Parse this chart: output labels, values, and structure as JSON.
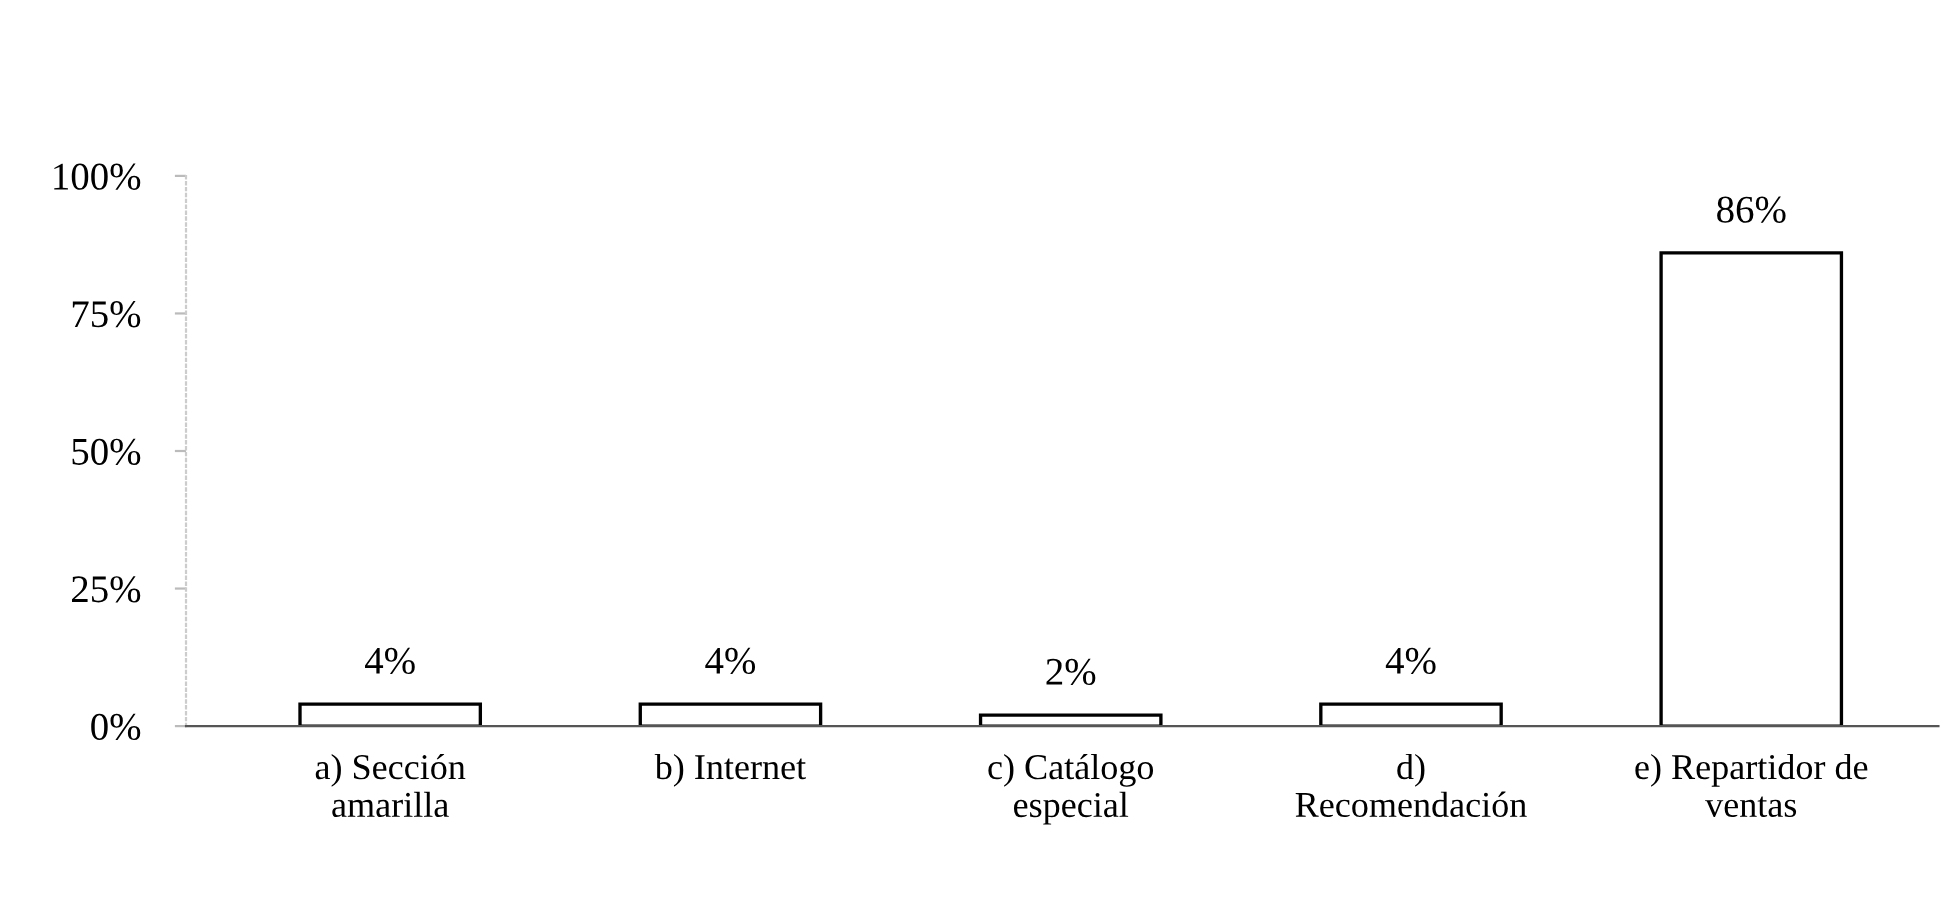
{
  "chart_data": {
    "type": "bar",
    "categories": [
      "a) Sección\namarilla",
      "b) Internet",
      "c) Catálogo\nespecial",
      "d)\nRecomendación",
      "e) Repartidor de\nventas"
    ],
    "values": [
      4,
      4,
      2,
      4,
      86
    ],
    "value_labels": [
      "4%",
      "4%",
      "2%",
      "4%",
      "86%"
    ],
    "color": "#ffffff",
    "ylim": [
      0,
      100
    ],
    "yticks": [
      {
        "value": 0,
        "label": "0%"
      },
      {
        "value": 25,
        "label": "25%"
      },
      {
        "value": 50,
        "label": "50%"
      },
      {
        "value": 75,
        "label": "75%"
      },
      {
        "value": 100,
        "label": "100%"
      }
    ],
    "grid": false,
    "legend": false
  }
}
